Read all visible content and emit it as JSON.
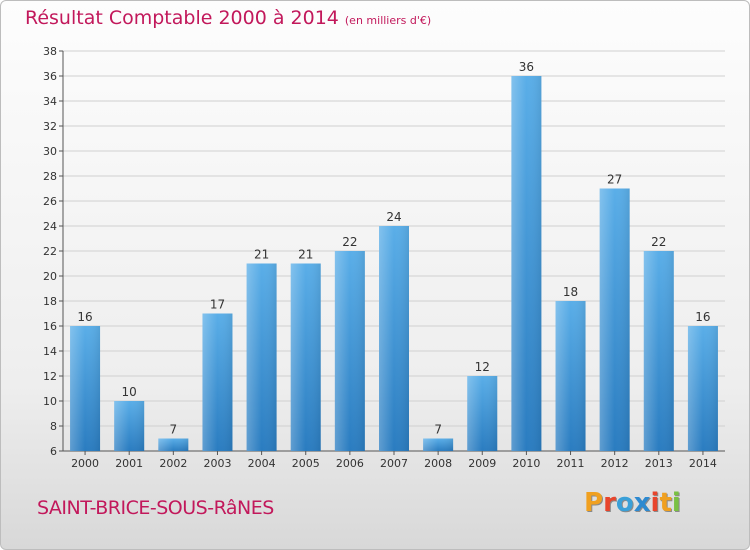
{
  "chart_data": {
    "type": "bar",
    "title": "Résultat Comptable 2000 à 2014",
    "subtitle": "(en milliers d'€)",
    "xlabel": "",
    "ylabel": "",
    "categories": [
      "2000",
      "2001",
      "2002",
      "2003",
      "2004",
      "2005",
      "2006",
      "2007",
      "2008",
      "2009",
      "2010",
      "2011",
      "2012",
      "2013",
      "2014"
    ],
    "values": [
      16,
      10,
      7,
      17,
      21,
      21,
      22,
      24,
      7,
      12,
      36,
      18,
      27,
      22,
      16
    ],
    "ylim": [
      6,
      38
    ],
    "yticks": [
      6,
      8,
      10,
      12,
      14,
      16,
      18,
      20,
      22,
      24,
      26,
      28,
      30,
      32,
      34,
      36,
      38
    ],
    "grid": true,
    "legend": "none"
  },
  "footer": {
    "commune": "SAINT-BRICE-SOUS-RâNES"
  },
  "logo": {
    "letters": [
      "P",
      "r",
      "o",
      "x",
      "i",
      "t",
      "i"
    ],
    "colors": [
      "#f0a020",
      "#e8452c",
      "#3aa0d8",
      "#2e8ad0",
      "#e8452c",
      "#f0a020",
      "#7ac143"
    ]
  },
  "colors": {
    "bar_top": "#5aaee8",
    "bar_bottom": "#2a7cc0",
    "title": "#c2185b",
    "grid": "#d0d0d0"
  }
}
